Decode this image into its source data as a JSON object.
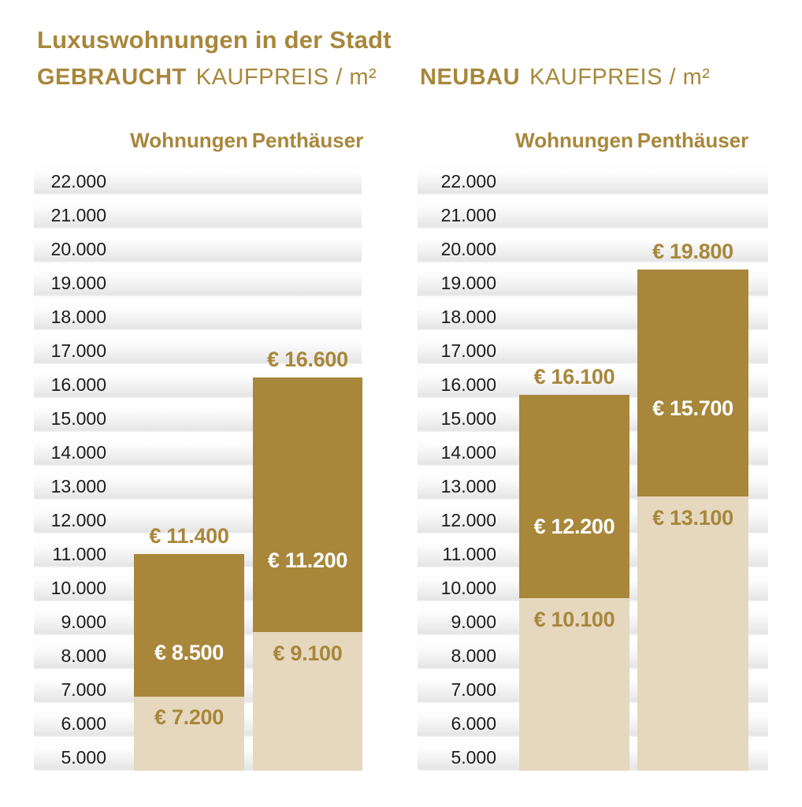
{
  "title": "Luxuswohnungen in der Stadt",
  "colors": {
    "gold": "#a8873b",
    "beige": "#e5d8bf",
    "label_white": "#ffffff",
    "axis_text": "#1d1d1d"
  },
  "chart_data": {
    "type": "bar",
    "title": "Luxuswohnungen in der Stadt",
    "unit": "EUR / m²",
    "grid": "horizontal-bands",
    "legend_position": "none",
    "y_axis": {
      "min": 5000,
      "max": 23000,
      "step": 1000,
      "baseline_value": 5000,
      "tick_labels": [
        "22.000",
        "21.000",
        "20.000",
        "19.000",
        "18.000",
        "17.000",
        "16.000",
        "15.000",
        "14.000",
        "13.000",
        "12.000",
        "11.000",
        "10.000",
        "9.000",
        "8.000",
        "7.000",
        "6.000",
        "5.000"
      ]
    },
    "panels": [
      {
        "id": "gebraucht",
        "title_strong": "GEBRAUCHT",
        "title_light": "KAUFPREIS / m²",
        "columns": [
          "Wohnungen",
          "Penthäuser"
        ],
        "bars": [
          {
            "category": "Wohnungen",
            "top_value": 11400,
            "mid_value": 8500,
            "low_value": 7200,
            "labels": {
              "top": "€ 11.400",
              "mid": "€ 8.500",
              "low": "€ 7.200"
            }
          },
          {
            "category": "Penthäuser",
            "top_value": 16600,
            "mid_value": 11200,
            "low_value": 9100,
            "labels": {
              "top": "€ 16.600",
              "mid": "€ 11.200",
              "low": "€ 9.100"
            }
          }
        ]
      },
      {
        "id": "neubau",
        "title_strong": "NEUBAU",
        "title_light": "KAUFPREIS / m²",
        "columns": [
          "Wohnungen",
          "Penthäuser"
        ],
        "bars": [
          {
            "category": "Wohnungen",
            "top_value": 16100,
            "mid_value": 12200,
            "low_value": 10100,
            "labels": {
              "top": "€ 16.100",
              "mid": "€ 12.200",
              "low": "€ 10.100"
            }
          },
          {
            "category": "Penthäuser",
            "top_value": 19800,
            "mid_value": 15700,
            "low_value": 13100,
            "labels": {
              "top": "€ 19.800",
              "mid": "€ 15.700",
              "low": "€ 13.100"
            }
          }
        ]
      }
    ]
  }
}
